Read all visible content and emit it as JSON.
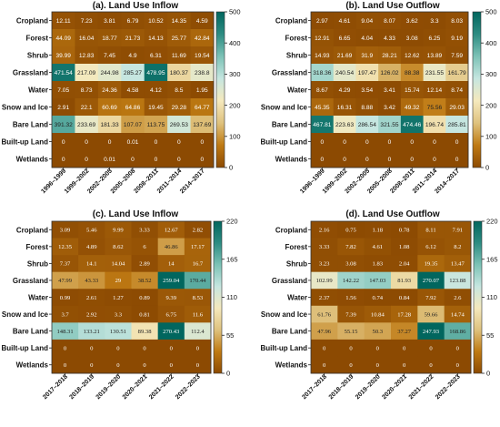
{
  "colormap": [
    "#8c4a02",
    "#bf7a13",
    "#dfc27e",
    "#f5e9bd",
    "#c6e6e0",
    "#7cc2b6",
    "#2d8c82",
    "#01665e"
  ],
  "chart_data": [
    {
      "type": "heatmap",
      "title": "(a). Land Use Inflow",
      "rows": [
        "Cropland",
        "Forest",
        "Shrub",
        "Grassland",
        "Water",
        "Snow and Ice",
        "Bare Land",
        "Built-up Land",
        "Wetlands"
      ],
      "columns": [
        "1996–1999",
        "1999–2002",
        "2002–2005",
        "2005–2008",
        "2008–2011",
        "2011–2014",
        "2014–2017"
      ],
      "values": [
        [
          "12.11",
          "7.23",
          "3.81",
          "6.79",
          "10.52",
          "14.35",
          "4.59"
        ],
        [
          "44.09",
          "16.04",
          "18.77",
          "21.73",
          "14.13",
          "25.77",
          "42.84"
        ],
        [
          "39.99",
          "12.83",
          "7.45",
          "4.9",
          "6.31",
          "11.69",
          "19.54"
        ],
        [
          "471.54",
          "217.09",
          "244.98",
          "285.27",
          "478.95",
          "180.37",
          "238.8"
        ],
        [
          "7.05",
          "8.73",
          "24.36",
          "4.58",
          "4.12",
          "8.5",
          "1.95"
        ],
        [
          "2.91",
          "22.1",
          "60.69",
          "64.86",
          "19.45",
          "29.28",
          "64.77"
        ],
        [
          "391.32",
          "233.69",
          "181.33",
          "107.07",
          "113.75",
          "269.53",
          "137.69"
        ],
        [
          "0",
          "0",
          "0",
          "0.01",
          "0",
          "0",
          "0"
        ],
        [
          "0",
          "0",
          "0.01",
          "0",
          "0",
          "0",
          "0"
        ]
      ],
      "colorbar": {
        "ticks": [
          "0",
          "100",
          "200",
          "300",
          "400",
          "500"
        ],
        "range": [
          0,
          500
        ]
      }
    },
    {
      "type": "heatmap",
      "title": "(b). Land Use Outflow",
      "rows": [
        "Cropland",
        "Forest",
        "Shrub",
        "Grassland",
        "Water",
        "Snow and Ice",
        "Bare Land",
        "Built-up Land",
        "Wetlands"
      ],
      "columns": [
        "1996–1999",
        "1999–2002",
        "2002–2005",
        "2005–2008",
        "2008–2011",
        "2011–2014",
        "2014–2017"
      ],
      "values": [
        [
          "2.97",
          "4.61",
          "9.04",
          "8.07",
          "3.62",
          "3.3",
          "8.03"
        ],
        [
          "12.91",
          "6.65",
          "4.04",
          "4.33",
          "3.08",
          "6.25",
          "9.19"
        ],
        [
          "14.93",
          "21.69",
          "31.9",
          "28.21",
          "12.62",
          "13.89",
          "7.59"
        ],
        [
          "318.36",
          "240.54",
          "197.47",
          "126.02",
          "88.38",
          "231.55",
          "161.79"
        ],
        [
          "8.67",
          "4.29",
          "3.54",
          "3.41",
          "15.74",
          "12.14",
          "8.74"
        ],
        [
          "45.35",
          "16.31",
          "8.88",
          "3.42",
          "49.32",
          "75.56",
          "29.03"
        ],
        [
          "467.81",
          "223.63",
          "286.54",
          "321.55",
          "474.46",
          "196.74",
          "285.81"
        ],
        [
          "0",
          "0",
          "0",
          "0",
          "0",
          "0",
          "0"
        ],
        [
          "0",
          "0",
          "0",
          "0",
          "0",
          "0",
          "0"
        ]
      ],
      "colorbar": {
        "ticks": [
          "0",
          "100",
          "200",
          "300",
          "400",
          "500"
        ],
        "range": [
          0,
          500
        ]
      }
    },
    {
      "type": "heatmap",
      "title": "(c). Land Use Inflow",
      "rows": [
        "Cropland",
        "Forest",
        "Shrub",
        "Grassland",
        "Water",
        "Snow and Ice",
        "Bare Land",
        "Built-up Land",
        "Wetlands"
      ],
      "columns": [
        "2017–2018",
        "2018–2019",
        "2019–2020",
        "2020–2021",
        "2021–2022",
        "2022–2023"
      ],
      "values": [
        [
          "3.09",
          "5.46",
          "9.99",
          "3.33",
          "12.67",
          "2.82"
        ],
        [
          "12.35",
          "4.89",
          "8.62",
          "6",
          "46.86",
          "17.17"
        ],
        [
          "7.37",
          "14.1",
          "14.04",
          "2.89",
          "14",
          "16.7"
        ],
        [
          "47.99",
          "43.33",
          "29",
          "38.52",
          "259.04",
          "170.44"
        ],
        [
          "0.99",
          "2.61",
          "1.27",
          "0.89",
          "9.39",
          "8.53"
        ],
        [
          "3.7",
          "2.92",
          "3.3",
          "0.81",
          "6.75",
          "11.6"
        ],
        [
          "148.31",
          "133.21",
          "130.51",
          "89.38",
          "270.43",
          "112.4"
        ],
        [
          "0",
          "0",
          "0",
          "0",
          "0",
          "0"
        ],
        [
          "0",
          "0",
          "0",
          "0",
          "0",
          "0"
        ]
      ],
      "colorbar": {
        "ticks": [
          "0",
          "55",
          "110",
          "165",
          "220"
        ],
        "range": [
          0,
          220
        ]
      }
    },
    {
      "type": "heatmap",
      "title": "(d). Land Use Outflow",
      "rows": [
        "Cropland",
        "Forest",
        "Shrub",
        "Grassland",
        "Water",
        "Snow and Ice",
        "Bare Land",
        "Built-up Land",
        "Wetlands"
      ],
      "columns": [
        "2017–2018",
        "2018–2019",
        "2019–2020",
        "2020–2021",
        "2021–2022",
        "2022–2023"
      ],
      "values": [
        [
          "2.16",
          "0.75",
          "1.18",
          "0.78",
          "8.11",
          "7.91"
        ],
        [
          "3.33",
          "7.82",
          "4.61",
          "1.08",
          "6.12",
          "8.2"
        ],
        [
          "3.23",
          "3.08",
          "1.83",
          "2.04",
          "19.35",
          "13.47"
        ],
        [
          "102.99",
          "142.22",
          "147.03",
          "81.93",
          "270.07",
          "123.88"
        ],
        [
          "2.37",
          "1.56",
          "0.74",
          "0.84",
          "7.92",
          "2.6"
        ],
        [
          "61.76",
          "7.39",
          "10.84",
          "17.28",
          "59.66",
          "14.74"
        ],
        [
          "47.96",
          "55.15",
          "50.3",
          "37.27",
          "247.93",
          "168.86"
        ],
        [
          "0",
          "0",
          "0",
          "0",
          "0",
          "0"
        ],
        [
          "0",
          "0",
          "0",
          "0",
          "0",
          "0"
        ]
      ],
      "colorbar": {
        "ticks": [
          "0",
          "55",
          "110",
          "165",
          "220"
        ],
        "range": [
          0,
          220
        ]
      }
    }
  ]
}
